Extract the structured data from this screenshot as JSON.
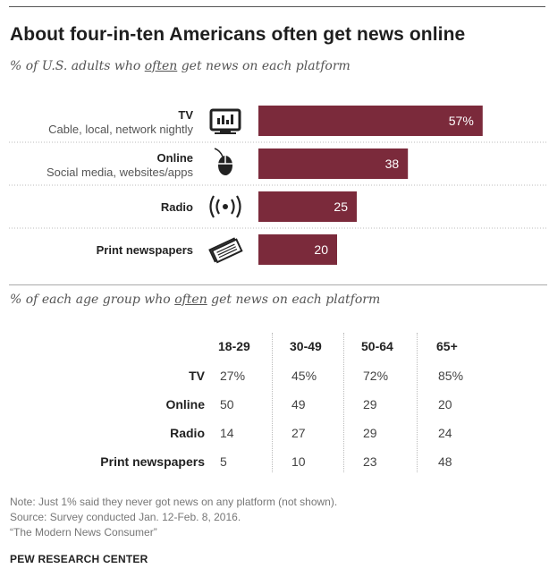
{
  "title": "About four-in-ten Americans often get news online",
  "subtitle_chart": {
    "pre": "% of U.S. adults who ",
    "emph": "often",
    "post": " get news on each platform"
  },
  "subtitle_table": {
    "pre": "% of each age group who ",
    "emph": "often",
    "post": " get news on each platform"
  },
  "chart_data": [
    {
      "type": "bar",
      "orientation": "horizontal",
      "categories": [
        "TV",
        "Online",
        "Radio",
        "Print newspapers"
      ],
      "sublabels": [
        "Cable, local, network nightly",
        "Social media, websites/apps",
        "",
        ""
      ],
      "icons": [
        "tv-icon",
        "mouse-icon",
        "radio-icon",
        "newspaper-icon"
      ],
      "values": [
        57,
        38,
        25,
        20
      ],
      "value_labels": [
        "57%",
        "38",
        "25",
        "20"
      ],
      "xlim": [
        0,
        100
      ],
      "bar_color": "#7b2a3b",
      "grid": false,
      "legend": "none"
    },
    {
      "type": "table",
      "columns": [
        "18-29",
        "30-49",
        "50-64",
        "65+"
      ],
      "rows": [
        {
          "label": "TV",
          "values": [
            "27%",
            "45%",
            "72%",
            "85%"
          ]
        },
        {
          "label": "Online",
          "values": [
            "50",
            "49",
            "29",
            "20"
          ]
        },
        {
          "label": "Radio",
          "values": [
            "14",
            "27",
            "29",
            "24"
          ]
        },
        {
          "label": "Print newspapers",
          "values": [
            "5",
            "10",
            "23",
            "48"
          ]
        }
      ]
    }
  ],
  "notes": [
    "Note: Just 1% said they never got news on any platform (not shown).",
    "Source: Survey conducted Jan. 12-Feb. 8, 2016.",
    "“The Modern News Consumer”"
  ],
  "brand": "PEW RESEARCH CENTER"
}
